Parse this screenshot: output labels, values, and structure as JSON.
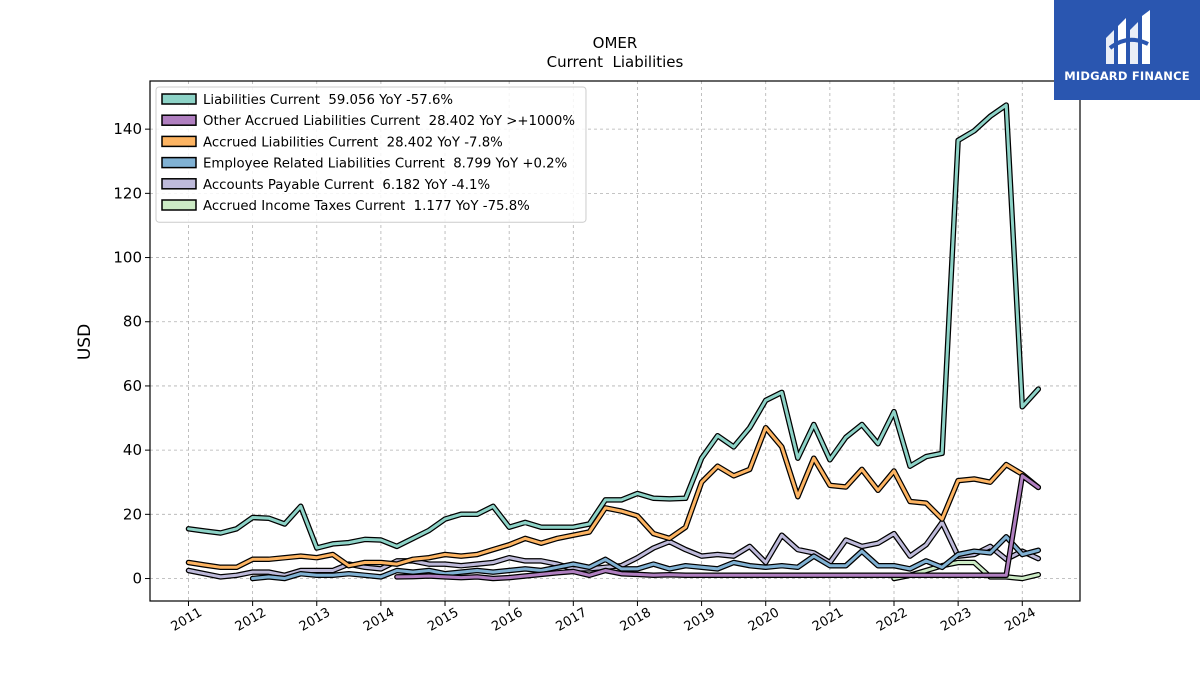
{
  "brand": {
    "name": "MIDGARD FINANCE",
    "bg_color": "#2a56b0"
  },
  "chart_data": {
    "type": "line",
    "title": "OMER",
    "subtitle": "Current  Liabilities",
    "ylabel": "USD",
    "xlabel": "",
    "xlim": [
      2010.4,
      2024.9
    ],
    "ylim": [
      -7,
      155
    ],
    "yticks": [
      0,
      20,
      40,
      60,
      80,
      100,
      120,
      140
    ],
    "xticks": [
      "2011",
      "2012",
      "2013",
      "2014",
      "2015",
      "2016",
      "2017",
      "2018",
      "2019",
      "2020",
      "2021",
      "2022",
      "2023",
      "2024"
    ],
    "grid": true,
    "legend_position": "top-left",
    "series": [
      {
        "name": "Liabilities Current",
        "legend_label": "Liabilities Current  59.056 YoY -57.6%",
        "color": "#8dd3c7",
        "points": [
          [
            2011.0,
            15.5
          ],
          [
            2011.25,
            14.8
          ],
          [
            2011.5,
            14.2
          ],
          [
            2011.75,
            15.5
          ],
          [
            2012.0,
            19.0
          ],
          [
            2012.25,
            18.8
          ],
          [
            2012.5,
            17.0
          ],
          [
            2012.75,
            22.5
          ],
          [
            2013.0,
            9.5
          ],
          [
            2013.25,
            10.8
          ],
          [
            2013.5,
            11.2
          ],
          [
            2013.75,
            12.2
          ],
          [
            2014.0,
            12.0
          ],
          [
            2014.25,
            10.0
          ],
          [
            2014.5,
            12.5
          ],
          [
            2014.75,
            15.0
          ],
          [
            2015.0,
            18.5
          ],
          [
            2015.25,
            20.0
          ],
          [
            2015.5,
            20.0
          ],
          [
            2015.75,
            22.5
          ],
          [
            2016.0,
            16.0
          ],
          [
            2016.25,
            17.5
          ],
          [
            2016.5,
            16.0
          ],
          [
            2016.75,
            16.0
          ],
          [
            2017.0,
            16.0
          ],
          [
            2017.25,
            17.0
          ],
          [
            2017.5,
            24.5
          ],
          [
            2017.75,
            24.5
          ],
          [
            2018.0,
            26.5
          ],
          [
            2018.25,
            25.0
          ],
          [
            2018.5,
            24.8
          ],
          [
            2018.75,
            25.0
          ],
          [
            2019.0,
            37.5
          ],
          [
            2019.25,
            44.5
          ],
          [
            2019.5,
            41.0
          ],
          [
            2019.75,
            47.0
          ],
          [
            2020.0,
            55.5
          ],
          [
            2020.25,
            58.0
          ],
          [
            2020.5,
            37.5
          ],
          [
            2020.75,
            48.0
          ],
          [
            2021.0,
            37.0
          ],
          [
            2021.25,
            44.0
          ],
          [
            2021.5,
            48.0
          ],
          [
            2021.75,
            42.0
          ],
          [
            2022.0,
            52.0
          ],
          [
            2022.25,
            35.0
          ],
          [
            2022.5,
            38.0
          ],
          [
            2022.75,
            39.0
          ],
          [
            2023.0,
            136.5
          ],
          [
            2023.25,
            139.5
          ],
          [
            2023.5,
            144.0
          ],
          [
            2023.75,
            147.5
          ],
          [
            2024.0,
            53.5
          ],
          [
            2024.25,
            59.0
          ]
        ]
      },
      {
        "name": "Other Accrued Liabilities Current",
        "legend_label": "Other Accrued Liabilities Current  28.402 YoY >+1000%",
        "color": "#b07fc0",
        "points": [
          [
            2014.25,
            0.5
          ],
          [
            2014.5,
            0.6
          ],
          [
            2014.75,
            0.8
          ],
          [
            2015.0,
            0.5
          ],
          [
            2015.25,
            0.3
          ],
          [
            2015.5,
            0.5
          ],
          [
            2015.75,
            0.0
          ],
          [
            2016.0,
            0.3
          ],
          [
            2016.25,
            0.8
          ],
          [
            2016.5,
            1.3
          ],
          [
            2016.75,
            1.8
          ],
          [
            2017.0,
            2.2
          ],
          [
            2017.25,
            1.0
          ],
          [
            2017.5,
            2.5
          ],
          [
            2017.75,
            1.5
          ],
          [
            2018.0,
            1.3
          ],
          [
            2018.25,
            1.0
          ],
          [
            2018.5,
            1.2
          ],
          [
            2018.75,
            1.0
          ],
          [
            2019.0,
            1.0
          ],
          [
            2019.25,
            1.0
          ],
          [
            2019.5,
            1.0
          ],
          [
            2019.75,
            1.0
          ],
          [
            2020.0,
            1.0
          ],
          [
            2020.25,
            1.0
          ],
          [
            2020.5,
            1.0
          ],
          [
            2020.75,
            1.0
          ],
          [
            2021.0,
            1.0
          ],
          [
            2021.25,
            1.0
          ],
          [
            2021.5,
            1.0
          ],
          [
            2021.75,
            1.0
          ],
          [
            2022.0,
            1.0
          ],
          [
            2022.25,
            1.0
          ],
          [
            2022.5,
            1.0
          ],
          [
            2022.75,
            1.0
          ],
          [
            2023.0,
            1.0
          ],
          [
            2023.25,
            1.0
          ],
          [
            2023.5,
            1.0
          ],
          [
            2023.75,
            1.0
          ],
          [
            2024.0,
            32.0
          ],
          [
            2024.25,
            28.4
          ]
        ]
      },
      {
        "name": "Accrued Liabilities Current",
        "legend_label": "Accrued Liabilities Current  28.402 YoY -7.8%",
        "color": "#fdb462",
        "points": [
          [
            2011.0,
            5.0
          ],
          [
            2011.25,
            4.2
          ],
          [
            2011.5,
            3.5
          ],
          [
            2011.75,
            3.5
          ],
          [
            2012.0,
            6.0
          ],
          [
            2012.25,
            6.0
          ],
          [
            2012.5,
            6.5
          ],
          [
            2012.75,
            7.0
          ],
          [
            2013.0,
            6.5
          ],
          [
            2013.25,
            7.5
          ],
          [
            2013.5,
            4.0
          ],
          [
            2013.75,
            5.0
          ],
          [
            2014.0,
            5.0
          ],
          [
            2014.25,
            4.5
          ],
          [
            2014.5,
            6.0
          ],
          [
            2014.75,
            6.5
          ],
          [
            2015.0,
            7.5
          ],
          [
            2015.25,
            7.0
          ],
          [
            2015.5,
            7.5
          ],
          [
            2015.75,
            9.0
          ],
          [
            2016.0,
            10.5
          ],
          [
            2016.25,
            12.5
          ],
          [
            2016.5,
            11.0
          ],
          [
            2016.75,
            12.5
          ],
          [
            2017.0,
            13.5
          ],
          [
            2017.25,
            14.5
          ],
          [
            2017.5,
            22.0
          ],
          [
            2017.75,
            21.0
          ],
          [
            2018.0,
            19.5
          ],
          [
            2018.25,
            14.0
          ],
          [
            2018.5,
            12.5
          ],
          [
            2018.75,
            16.0
          ],
          [
            2019.0,
            30.0
          ],
          [
            2019.25,
            35.0
          ],
          [
            2019.5,
            32.0
          ],
          [
            2019.75,
            34.0
          ],
          [
            2020.0,
            47.0
          ],
          [
            2020.25,
            41.0
          ],
          [
            2020.5,
            25.5
          ],
          [
            2020.75,
            37.5
          ],
          [
            2021.0,
            29.0
          ],
          [
            2021.25,
            28.5
          ],
          [
            2021.5,
            34.0
          ],
          [
            2021.75,
            27.5
          ],
          [
            2022.0,
            33.5
          ],
          [
            2022.25,
            24.0
          ],
          [
            2022.5,
            23.5
          ],
          [
            2022.75,
            18.5
          ],
          [
            2023.0,
            30.5
          ],
          [
            2023.25,
            31.0
          ],
          [
            2023.5,
            30.0
          ],
          [
            2023.75,
            35.5
          ],
          [
            2024.0,
            32.5
          ],
          [
            2024.25,
            28.4
          ]
        ]
      },
      {
        "name": "Employee Related Liabilities Current",
        "legend_label": "Employee Related Liabilities Current  8.799 YoY +0.2%",
        "color": "#80b1d3",
        "points": [
          [
            2012.0,
            0.0
          ],
          [
            2012.25,
            0.5
          ],
          [
            2012.5,
            0.0
          ],
          [
            2012.75,
            1.5
          ],
          [
            2013.0,
            1.0
          ],
          [
            2013.25,
            1.0
          ],
          [
            2013.5,
            1.5
          ],
          [
            2013.75,
            1.0
          ],
          [
            2014.0,
            0.5
          ],
          [
            2014.25,
            2.5
          ],
          [
            2014.5,
            2.0
          ],
          [
            2014.75,
            2.5
          ],
          [
            2015.0,
            1.5
          ],
          [
            2015.25,
            2.0
          ],
          [
            2015.5,
            2.5
          ],
          [
            2015.75,
            2.0
          ],
          [
            2016.0,
            2.5
          ],
          [
            2016.25,
            3.0
          ],
          [
            2016.5,
            2.5
          ],
          [
            2016.75,
            3.5
          ],
          [
            2017.0,
            4.5
          ],
          [
            2017.25,
            3.5
          ],
          [
            2017.5,
            6.0
          ],
          [
            2017.75,
            3.0
          ],
          [
            2018.0,
            3.0
          ],
          [
            2018.25,
            4.5
          ],
          [
            2018.5,
            3.0
          ],
          [
            2018.75,
            4.0
          ],
          [
            2019.0,
            3.5
          ],
          [
            2019.25,
            3.0
          ],
          [
            2019.5,
            5.0
          ],
          [
            2019.75,
            4.0
          ],
          [
            2020.0,
            3.5
          ],
          [
            2020.25,
            4.0
          ],
          [
            2020.5,
            3.5
          ],
          [
            2020.75,
            7.0
          ],
          [
            2021.0,
            4.0
          ],
          [
            2021.25,
            4.0
          ],
          [
            2021.5,
            8.5
          ],
          [
            2021.75,
            4.0
          ],
          [
            2022.0,
            4.0
          ],
          [
            2022.25,
            3.0
          ],
          [
            2022.5,
            5.5
          ],
          [
            2022.75,
            3.5
          ],
          [
            2023.0,
            7.5
          ],
          [
            2023.25,
            8.5
          ],
          [
            2023.5,
            8.0
          ],
          [
            2023.75,
            13.0
          ],
          [
            2024.0,
            7.5
          ],
          [
            2024.25,
            8.8
          ]
        ]
      },
      {
        "name": "Accounts Payable Current",
        "legend_label": "Accounts Payable Current  6.182 YoY -4.1%",
        "color": "#bebada",
        "points": [
          [
            2011.0,
            2.5
          ],
          [
            2011.25,
            1.5
          ],
          [
            2011.5,
            0.5
          ],
          [
            2011.75,
            1.0
          ],
          [
            2012.0,
            2.0
          ],
          [
            2012.25,
            2.0
          ],
          [
            2012.5,
            1.0
          ],
          [
            2012.75,
            2.5
          ],
          [
            2013.0,
            2.5
          ],
          [
            2013.25,
            2.5
          ],
          [
            2013.5,
            4.5
          ],
          [
            2013.75,
            3.5
          ],
          [
            2014.0,
            3.0
          ],
          [
            2014.25,
            5.5
          ],
          [
            2014.5,
            5.5
          ],
          [
            2014.75,
            4.5
          ],
          [
            2015.0,
            4.5
          ],
          [
            2015.25,
            4.0
          ],
          [
            2015.5,
            4.5
          ],
          [
            2015.75,
            5.0
          ],
          [
            2016.0,
            6.5
          ],
          [
            2016.25,
            5.5
          ],
          [
            2016.5,
            5.5
          ],
          [
            2016.75,
            4.5
          ],
          [
            2017.0,
            3.0
          ],
          [
            2017.25,
            3.0
          ],
          [
            2017.5,
            3.5
          ],
          [
            2017.75,
            4.0
          ],
          [
            2018.0,
            6.5
          ],
          [
            2018.25,
            9.5
          ],
          [
            2018.5,
            11.5
          ],
          [
            2018.75,
            9.0
          ],
          [
            2019.0,
            7.0
          ],
          [
            2019.25,
            7.5
          ],
          [
            2019.5,
            7.0
          ],
          [
            2019.75,
            10.0
          ],
          [
            2020.0,
            5.0
          ],
          [
            2020.25,
            13.5
          ],
          [
            2020.5,
            9.0
          ],
          [
            2020.75,
            8.0
          ],
          [
            2021.0,
            5.0
          ],
          [
            2021.25,
            12.0
          ],
          [
            2021.5,
            10.0
          ],
          [
            2021.75,
            11.0
          ],
          [
            2022.0,
            14.0
          ],
          [
            2022.25,
            7.0
          ],
          [
            2022.5,
            10.5
          ],
          [
            2022.75,
            17.5
          ],
          [
            2023.0,
            7.0
          ],
          [
            2023.25,
            7.5
          ],
          [
            2023.5,
            10.0
          ],
          [
            2023.75,
            6.0
          ],
          [
            2024.0,
            8.5
          ],
          [
            2024.25,
            6.2
          ]
        ]
      },
      {
        "name": "Accrued Income Taxes Current",
        "legend_label": "Accrued Income Taxes Current  1.177 YoY -75.8%",
        "color": "#ccebc5",
        "points": [
          [
            2022.0,
            0.0
          ],
          [
            2022.25,
            1.0
          ],
          [
            2022.5,
            2.5
          ],
          [
            2022.75,
            4.0
          ],
          [
            2023.0,
            5.0
          ],
          [
            2023.25,
            5.0
          ],
          [
            2023.5,
            0.5
          ],
          [
            2023.75,
            0.5
          ],
          [
            2024.0,
            0.0
          ],
          [
            2024.25,
            1.2
          ]
        ]
      }
    ]
  }
}
